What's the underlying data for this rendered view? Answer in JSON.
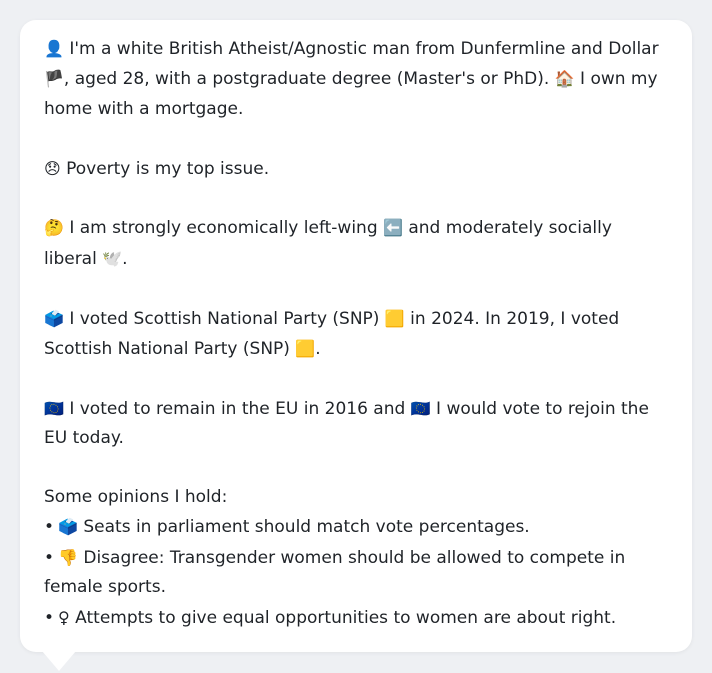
{
  "profile": {
    "intro": {
      "icon": "👤",
      "part1": " I'm a white British Atheist/Agnostic man from Dunfermline and Dollar ",
      "flag": "🏴",
      "part2": ", aged 28, with a postgraduate degree (Master's or PhD). ",
      "home_icon": "🏠",
      "part3": " I own my home with a mortgage."
    },
    "top_issue": {
      "icon": "😞",
      "text": " Poverty is my top issue."
    },
    "ideology": {
      "icon": "🤔",
      "part1": " I am strongly economically left-wing ",
      "left_icon": "⬅️",
      "part2": " and moderately socially liberal ",
      "dove_icon": "🕊️",
      "part3": "."
    },
    "voting": {
      "icon": "🗳️",
      "part1": " I voted Scottish National Party (SNP) ",
      "party_icon_1": "🟨",
      "part2": " in 2024. In 2019, I voted Scottish National Party (SNP) ",
      "party_icon_2": "🟨",
      "part3": "."
    },
    "eu": {
      "icon1": "🇪🇺",
      "part1": " I voted to remain in the EU in 2016 and ",
      "icon2": "🇪🇺",
      "part2": " I would vote to rejoin the EU today."
    },
    "opinions": {
      "title": "Some opinions I hold:",
      "items": [
        {
          "bullet": "•",
          "icon": "🗳️",
          "text": " Seats in parliament should match vote percentages."
        },
        {
          "bullet": "•",
          "icon": "👎",
          "text": " Disagree: Transgender women should be allowed to compete in female sports."
        },
        {
          "bullet": "•",
          "icon": "♀",
          "text": "  Attempts to give equal opportunities to women are about right."
        }
      ]
    }
  },
  "colors": {
    "page_background": "#eef0f3",
    "bubble_background": "#ffffff",
    "text": "#1f2328"
  }
}
